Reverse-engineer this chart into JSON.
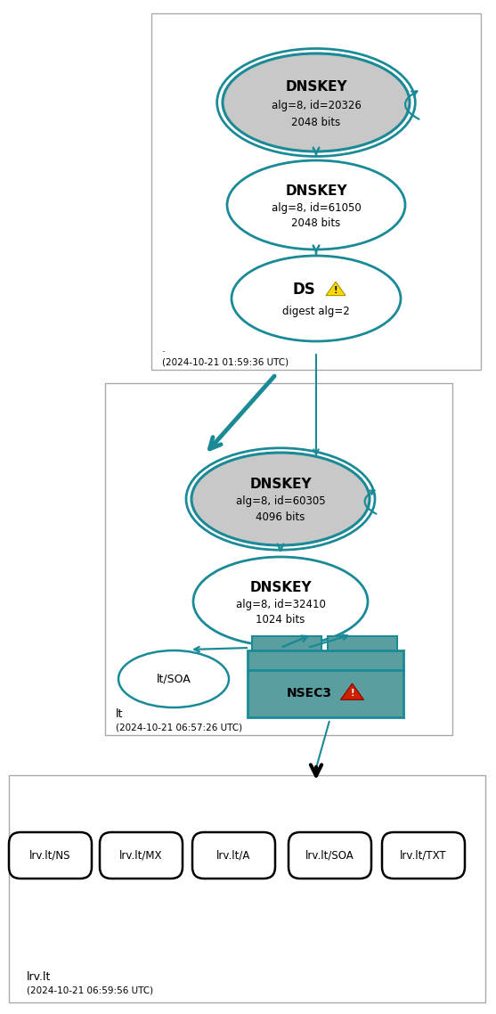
{
  "teal": "#1a8a96",
  "gray_fill": "#c8c8c8",
  "white_fill": "#ffffff",
  "nsec3_fill": "#5b9ea0",
  "nsec3_header": "#2a7a86",
  "figw": 5.57,
  "figh": 11.38,
  "dpi": 100,
  "zone1_label": ".",
  "zone1_time": "(2024-10-21 01:59:36 UTC)",
  "zone2_label": "lt",
  "zone2_time": "(2024-10-21 06:57:26 UTC)",
  "zone3_label": "lrv.lt",
  "zone3_time": "(2024-10-21 06:59:56 UTC)",
  "records": [
    "lrv.lt/NS",
    "lrv.lt/MX",
    "lrv.lt/A",
    "lrv.lt/SOA",
    "lrv.lt/TXT"
  ]
}
